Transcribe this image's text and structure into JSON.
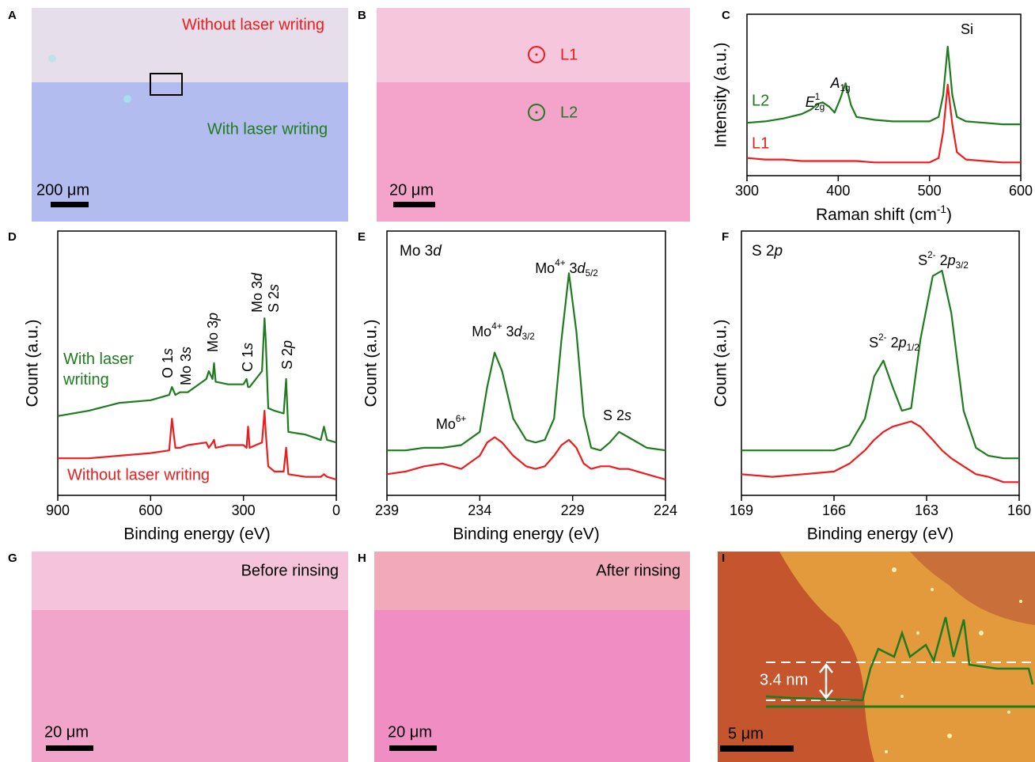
{
  "chart_data": [
    {
      "panel": "C",
      "type": "line",
      "xlabel": [
        "Raman shift (cm",
        "-1",
        ")"
      ],
      "ylabel": "Intensity (a.u.)",
      "xlim": [
        300,
        600
      ],
      "xticks": [
        300,
        400,
        500,
        600
      ],
      "ylim": [
        0,
        110
      ],
      "x": [
        300,
        320,
        340,
        360,
        370,
        378,
        383,
        390,
        396,
        402,
        408,
        414,
        420,
        440,
        460,
        480,
        500,
        510,
        515,
        520,
        525,
        530,
        540,
        560,
        580,
        600
      ],
      "series": [
        {
          "name": "L2",
          "color": "#1e7b1e",
          "values": [
            36,
            37,
            39,
            42,
            45,
            49,
            50,
            47,
            43,
            52,
            63,
            48,
            40,
            38,
            37,
            37,
            37,
            40,
            55,
            88,
            55,
            40,
            37,
            36,
            35,
            35
          ]
        },
        {
          "name": "L1",
          "color": "#ee1c1c",
          "values": [
            12,
            11,
            11,
            10,
            10,
            10,
            10,
            10,
            10,
            10,
            10,
            10,
            10,
            9,
            9,
            9,
            9,
            12,
            30,
            62,
            35,
            16,
            11,
            10,
            9,
            9
          ]
        }
      ],
      "annotations": [
        [
          "E",
          "1",
          "2g"
        ],
        [
          "A",
          "1g"
        ],
        [
          "Si"
        ]
      ]
    },
    {
      "panel": "D",
      "type": "line",
      "xlabel": "Binding energy (eV)",
      "ylabel": "Count (a.u.)",
      "xlim": [
        900,
        0
      ],
      "xticks": [
        900,
        600,
        300,
        0
      ],
      "ylim": [
        0,
        100
      ],
      "x": [
        900,
        800,
        700,
        600,
        540,
        531,
        520,
        505,
        480,
        420,
        412,
        400,
        395,
        390,
        350,
        300,
        290,
        285,
        280,
        260,
        240,
        232,
        228,
        220,
        200,
        170,
        162,
        155,
        100,
        50,
        40,
        30,
        0
      ],
      "series": [
        {
          "name": "With laser writing",
          "color": "#1e7b1e",
          "values": [
            30,
            32,
            35,
            36,
            38,
            41,
            38,
            39,
            39,
            44,
            47,
            44,
            50,
            43,
            42,
            42,
            44,
            41,
            41,
            44,
            47,
            67,
            59,
            33,
            32,
            31,
            44,
            24,
            23,
            21,
            26,
            21,
            20
          ]
        },
        {
          "name": "Without laser writing",
          "color": "#ee1c1c",
          "values": [
            14,
            14,
            15,
            16,
            17,
            29,
            18,
            18,
            19,
            20,
            18,
            20,
            21,
            18,
            19,
            19,
            18,
            26,
            18,
            19,
            20,
            32,
            24,
            11,
            9,
            9,
            18,
            8,
            7,
            7,
            8,
            7,
            6
          ]
        }
      ],
      "annotations": [
        [
          "O 1",
          "s"
        ],
        [
          "Mo 3",
          "s"
        ],
        [
          "Mo 3",
          "p"
        ],
        [
          "C 1",
          "s"
        ],
        [
          "Mo 3",
          "d"
        ],
        [
          "S 2",
          "s"
        ],
        [
          "S 2",
          "p"
        ]
      ]
    },
    {
      "panel": "E",
      "type": "line",
      "title": [
        "Mo 3",
        "d"
      ],
      "xlabel": "Binding energy (eV)",
      "ylabel": "Count (a.u.)",
      "xlim": [
        239,
        224
      ],
      "xticks": [
        239,
        234,
        229,
        224
      ],
      "ylim": [
        0,
        100
      ],
      "x": [
        239,
        238,
        237,
        236,
        235,
        234,
        233.6,
        233.2,
        232.8,
        232.2,
        231.5,
        231,
        230.5,
        230,
        229.6,
        229.2,
        228.8,
        228.4,
        228,
        227.5,
        227,
        226.5,
        226,
        225,
        224
      ],
      "series": [
        {
          "color": "#1e7b1e",
          "values": [
            17,
            17,
            18,
            18,
            19,
            24,
            41,
            54,
            47,
            29,
            21,
            20,
            21,
            29,
            59,
            84,
            62,
            30,
            18,
            17,
            20,
            24,
            22,
            18,
            17
          ]
        },
        {
          "color": "#ee1c1c",
          "values": [
            8,
            9,
            11,
            12,
            10,
            15,
            20,
            22,
            20,
            15,
            11,
            10,
            11,
            15,
            19,
            21,
            18,
            12,
            10,
            11,
            11,
            10,
            10,
            8,
            6
          ]
        }
      ],
      "annotations": [
        [
          "Mo",
          "6+"
        ],
        [
          "Mo",
          "4+",
          " 3",
          "d",
          "3/2"
        ],
        [
          "Mo",
          "4+",
          " 3",
          "d",
          "5/2"
        ],
        [
          "S 2",
          "s"
        ]
      ]
    },
    {
      "panel": "F",
      "type": "line",
      "title": [
        "S 2",
        "p"
      ],
      "xlabel": "Binding energy (eV)",
      "ylabel": "Count (a.u.)",
      "xlim": [
        169,
        160
      ],
      "xticks": [
        169,
        166,
        163,
        160
      ],
      "ylim": [
        0,
        100
      ],
      "x": [
        169,
        168,
        167,
        166,
        165.5,
        165,
        164.7,
        164.4,
        164.1,
        163.8,
        163.5,
        163.2,
        162.8,
        162.5,
        162.2,
        161.8,
        161.4,
        161,
        160.5,
        160
      ],
      "series": [
        {
          "color": "#1e7b1e",
          "values": [
            17,
            17,
            17,
            17,
            19,
            29,
            45,
            51,
            41,
            32,
            33,
            59,
            83,
            85,
            69,
            32,
            18,
            15,
            14,
            14
          ]
        },
        {
          "color": "#ee1c1c",
          "values": [
            8,
            7,
            8,
            9,
            12,
            17,
            21,
            24,
            26,
            27,
            28,
            26,
            21,
            17,
            14,
            11,
            8,
            7,
            5,
            5
          ]
        }
      ],
      "annotations": [
        [
          "S",
          "2-",
          " 2",
          "p",
          "1/2"
        ],
        [
          "S",
          "2-",
          " 2",
          "p",
          "3/2"
        ]
      ]
    }
  ],
  "images": [
    {
      "panel": "A",
      "texts": [
        "Without laser writing",
        "With laser writing"
      ],
      "scale_bar": "200 μm"
    },
    {
      "panel": "B",
      "texts": [
        "L1",
        "L2"
      ],
      "scale_bar": "20 μm"
    },
    {
      "panel": "G",
      "texts": [
        "Before rinsing"
      ],
      "scale_bar": "20 μm"
    },
    {
      "panel": "H",
      "texts": [
        "After rinsing"
      ],
      "scale_bar": "20 μm"
    },
    {
      "panel": "I",
      "texts": [
        "3.4 nm"
      ],
      "scale_bar": "5 μm"
    }
  ]
}
